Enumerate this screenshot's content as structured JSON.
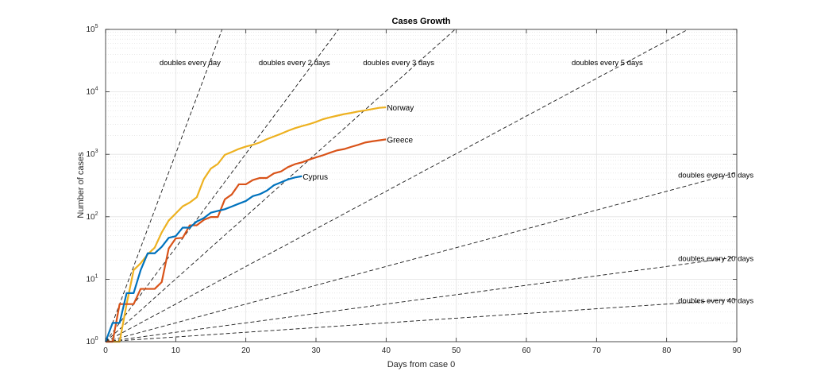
{
  "chart_data": {
    "type": "line",
    "title": "Cases Growth",
    "xlabel": "Days from case 0",
    "ylabel": "Number of cases",
    "xlim": [
      0,
      90
    ],
    "ylim": [
      1,
      100000
    ],
    "yscale": "log",
    "grid": true,
    "x_ticks": [
      "0",
      "10",
      "20",
      "30",
      "40",
      "50",
      "60",
      "70",
      "80",
      "90"
    ],
    "y_ticks": [
      {
        "base": "10",
        "exp": "0"
      },
      {
        "base": "10",
        "exp": "1"
      },
      {
        "base": "10",
        "exp": "2"
      },
      {
        "base": "10",
        "exp": "3"
      },
      {
        "base": "10",
        "exp": "4"
      },
      {
        "base": "10",
        "exp": "5"
      }
    ],
    "series": [
      {
        "name": "Norway",
        "color": "#EDB120",
        "x": [
          0,
          1,
          2,
          3,
          4,
          5,
          6,
          7,
          8,
          9,
          10,
          11,
          12,
          13,
          14,
          15,
          16,
          17,
          18,
          19,
          20,
          21,
          22,
          23,
          24,
          25,
          26,
          27,
          28,
          29,
          30,
          31,
          32,
          33,
          34,
          35,
          36,
          37,
          38,
          39,
          40
        ],
        "y": [
          1,
          1,
          1,
          4,
          14,
          18,
          25,
          32,
          56,
          87,
          113,
          147,
          169,
          205,
          400,
          590,
          700,
          980,
          1090,
          1220,
          1330,
          1420,
          1550,
          1750,
          1930,
          2130,
          2380,
          2620,
          2830,
          3030,
          3300,
          3650,
          3900,
          4150,
          4400,
          4600,
          4850,
          5050,
          5300,
          5550,
          5650
        ]
      },
      {
        "name": "Greece",
        "color": "#D95319",
        "x": [
          0,
          1,
          2,
          3,
          4,
          5,
          6,
          7,
          8,
          9,
          10,
          11,
          12,
          13,
          14,
          15,
          16,
          17,
          18,
          19,
          20,
          21,
          22,
          23,
          24,
          25,
          26,
          27,
          28,
          29,
          30,
          31,
          32,
          33,
          34,
          35,
          36,
          37,
          38,
          39,
          40
        ],
        "y": [
          1,
          1,
          4,
          4,
          4,
          7,
          7,
          7,
          9,
          31,
          45,
          46,
          73,
          73,
          89,
          99,
          99,
          190,
          228,
          331,
          331,
          387,
          418,
          418,
          495,
          530,
          624,
          695,
          743,
          821,
          892,
          966,
          1061,
          1156,
          1212,
          1314,
          1415,
          1544,
          1613,
          1673,
          1735
        ]
      },
      {
        "name": "Cyprus",
        "color": "#0072BD",
        "x": [
          0,
          1,
          2,
          3,
          4,
          5,
          6,
          7,
          8,
          9,
          10,
          11,
          12,
          13,
          14,
          15,
          16,
          17,
          18,
          19,
          20,
          21,
          22,
          23,
          24,
          25,
          26,
          27,
          28
        ],
        "y": [
          1,
          2,
          2,
          6,
          6,
          14,
          26,
          26,
          33,
          46,
          49,
          67,
          67,
          84,
          95,
          116,
          124,
          132,
          146,
          162,
          179,
          214,
          230,
          262,
          320,
          356,
          396,
          426,
          446
        ]
      }
    ],
    "reference_lines": [
      {
        "label": "doubles every day",
        "doubling_days": 1
      },
      {
        "label": "doubles every 2 days",
        "doubling_days": 2
      },
      {
        "label": "doubles every 3 days",
        "doubling_days": 3
      },
      {
        "label": "doubles every 5 days",
        "doubling_days": 5
      },
      {
        "label": "doubles every 10 days",
        "doubling_days": 10
      },
      {
        "label": "doubles every 20 days",
        "doubling_days": 20
      },
      {
        "label": "doubles every 40 days",
        "doubling_days": 40
      }
    ]
  }
}
